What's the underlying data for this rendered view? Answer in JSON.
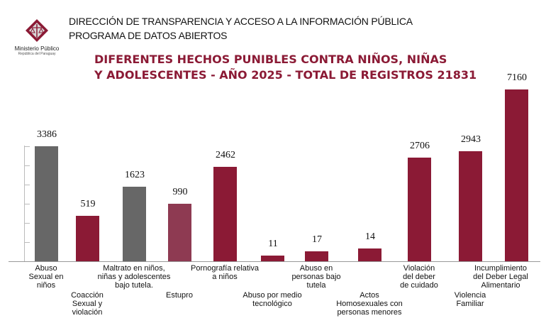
{
  "header": {
    "line1": "DIRECCIÓN DE TRANSPARENCIA Y ACCESO A LA INFORMACIÓN PÚBLICA",
    "line2": "PROGRAMA DE DATOS ABIERTOS"
  },
  "logo": {
    "name": "Ministerio Público",
    "subtitle": "República del Paraguay",
    "icon": "scales-of-justice-diamond"
  },
  "chart_data": {
    "type": "bar",
    "title": [
      "DIFERENTES HECHOS PUNIBLES CONTRA NIÑOS, NIÑAS",
      "Y ADOLESCENTES -  AÑO 2025 - TOTAL DE REGISTROS  21831"
    ],
    "categories": [
      "Abuso\nSexual en\nniños",
      "Coacción\nSexual y\nviolación",
      "Maltrato en niños,\nniñas y adolescentes\nbajo tutela.",
      "Estupro",
      "Pornografía relativa\na niños",
      "Abuso por medio\ntecnológico",
      "Abuso en\npersonas bajo\ntutela",
      "Actos\nHomosexuales con\npersonas menores",
      "Violación\ndel deber\nde cuidado",
      "Violencia\nFamiliar",
      "Incumplimiento\ndel Deber Legal\nAlimentario"
    ],
    "values": [
      3386,
      519,
      1623,
      990,
      2462,
      11,
      17,
      14,
      2706,
      2943,
      7160
    ],
    "colors": [
      "#676767",
      "#8b1a35",
      "#676767",
      "#8e3a52",
      "#8b1a35",
      "#8b1a35",
      "#8b1a35",
      "#8b1a35",
      "#8b1a35",
      "#8b1a35",
      "#8b1a35"
    ],
    "grid": false,
    "legend": "none"
  }
}
